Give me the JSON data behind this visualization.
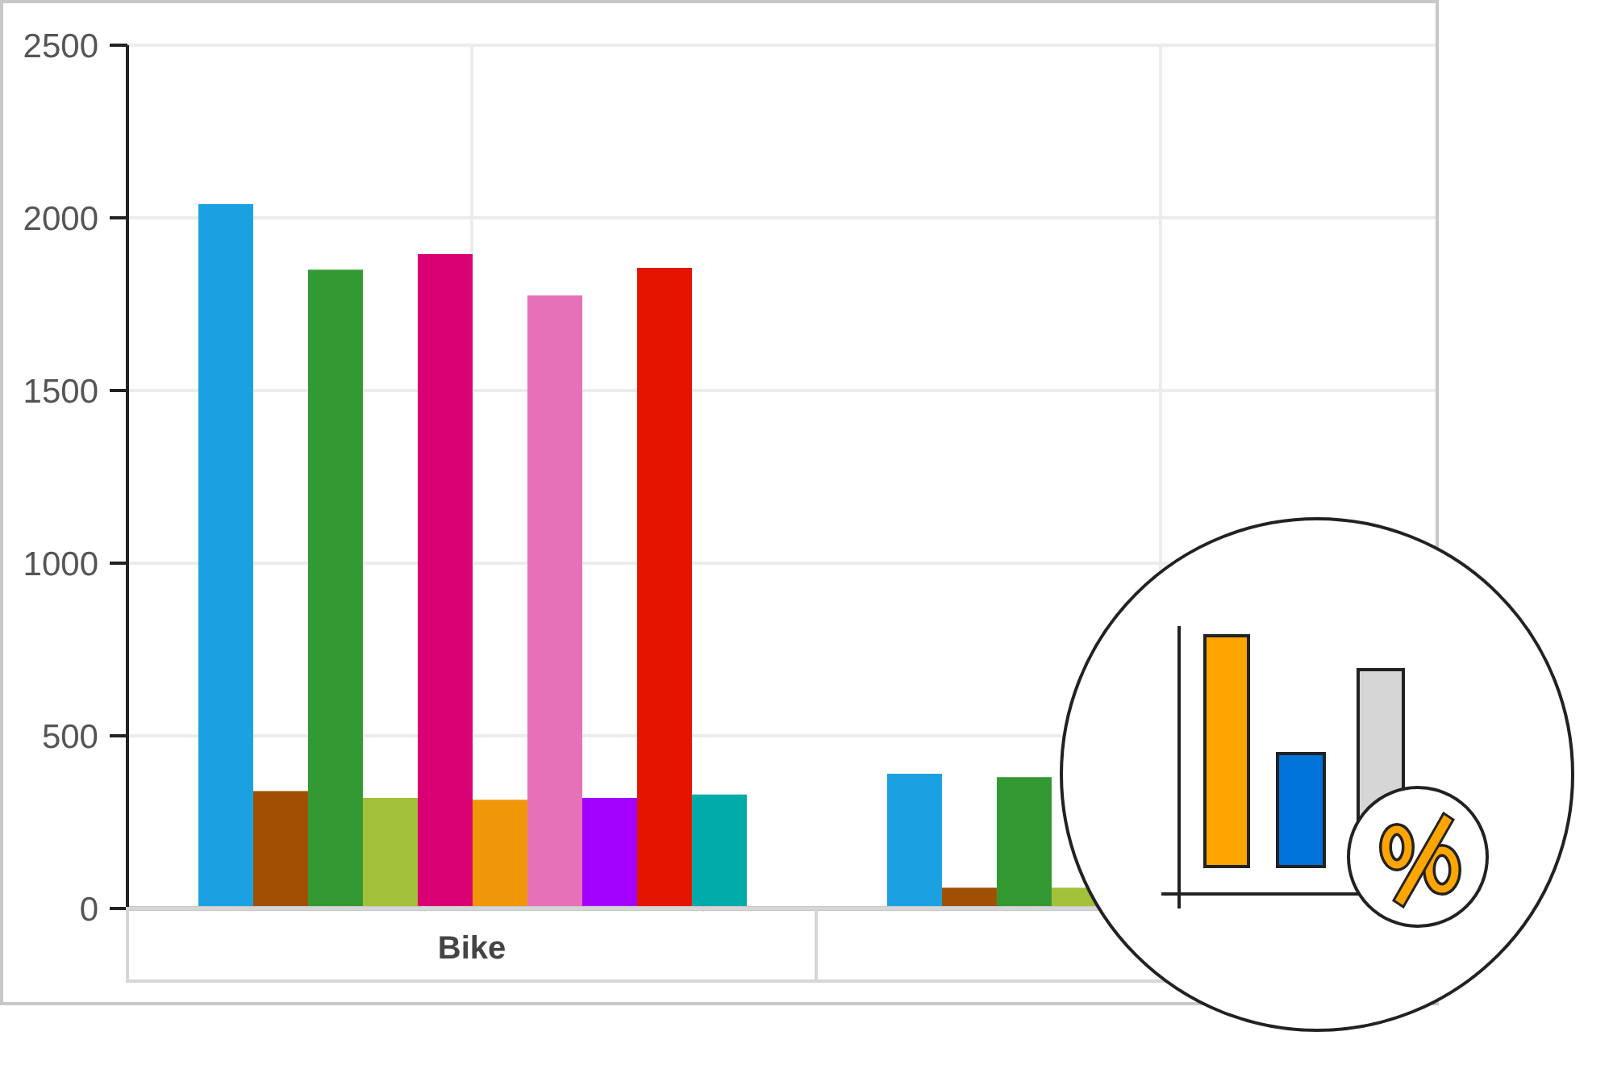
{
  "chart_data": {
    "type": "bar",
    "categories": [
      "Bike",
      null
    ],
    "series": [
      {
        "color": "#1ba1e2",
        "values": [
          2040,
          390
        ]
      },
      {
        "color": "#a05000",
        "values": [
          340,
          60
        ]
      },
      {
        "color": "#339933",
        "values": [
          1850,
          380
        ]
      },
      {
        "color": "#a2c139",
        "values": [
          320,
          60
        ]
      },
      {
        "color": "#d80073",
        "values": [
          1895,
          null
        ]
      },
      {
        "color": "#f09609",
        "values": [
          315,
          null
        ]
      },
      {
        "color": "#e671b8",
        "values": [
          1775,
          null
        ]
      },
      {
        "color": "#a200ff",
        "values": [
          320,
          null
        ]
      },
      {
        "color": "#e51400",
        "values": [
          1855,
          null
        ]
      },
      {
        "color": "#00aba9",
        "values": [
          330,
          null
        ]
      }
    ],
    "ylim": [
      0,
      2500
    ],
    "yticks": [
      0,
      500,
      1000,
      1500,
      2000,
      2500
    ],
    "grid": true
  }
}
